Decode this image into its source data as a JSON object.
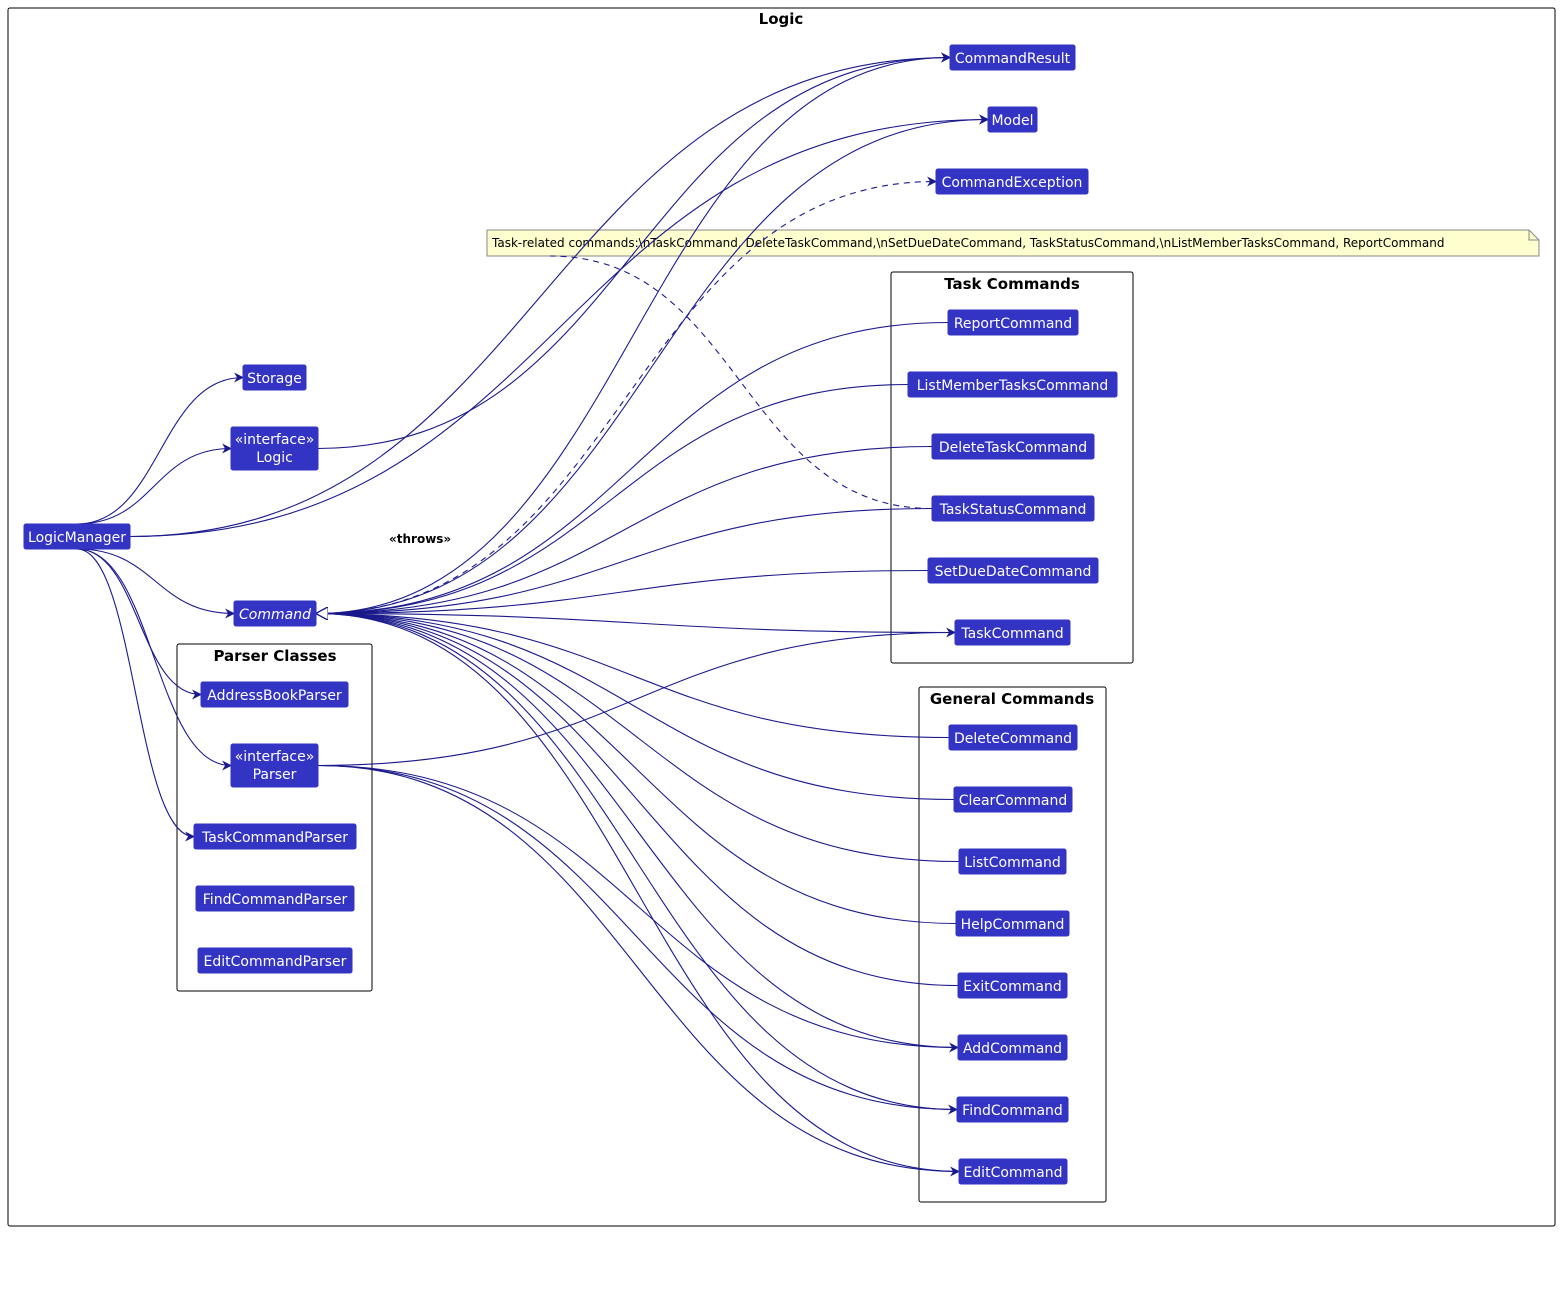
{
  "packages": {
    "logic": "Logic",
    "task_commands": "Task Commands",
    "general_commands": "General Commands",
    "parser_classes": "Parser Classes"
  },
  "colors": {
    "node_fill": "#3333c4",
    "edge": "#1a1a8c",
    "note_fill": "#fefece"
  },
  "nodes": {
    "CommandResult": {
      "label": "CommandResult"
    },
    "Model": {
      "label": "Model"
    },
    "CommandException": {
      "label": "CommandException"
    },
    "Storage": {
      "label": "Storage"
    },
    "Logic": {
      "stereotype": "«interface»",
      "label": "Logic"
    },
    "LogicManager": {
      "label": "LogicManager"
    },
    "Command": {
      "label": "Command"
    },
    "AddressBookParser": {
      "label": "AddressBookParser"
    },
    "Parser": {
      "stereotype": "«interface»",
      "label": "Parser"
    },
    "TaskCommandParser": {
      "label": "TaskCommandParser"
    },
    "FindCommandParser": {
      "label": "FindCommandParser"
    },
    "EditCommandParser": {
      "label": "EditCommandParser"
    },
    "ReportCommand": {
      "label": "ReportCommand"
    },
    "ListMemberTasksCommand": {
      "label": "ListMemberTasksCommand"
    },
    "DeleteTaskCommand": {
      "label": "DeleteTaskCommand"
    },
    "TaskStatusCommand": {
      "label": "TaskStatusCommand"
    },
    "SetDueDateCommand": {
      "label": "SetDueDateCommand"
    },
    "TaskCommand": {
      "label": "TaskCommand"
    },
    "DeleteCommand": {
      "label": "DeleteCommand"
    },
    "ClearCommand": {
      "label": "ClearCommand"
    },
    "ListCommand": {
      "label": "ListCommand"
    },
    "HelpCommand": {
      "label": "HelpCommand"
    },
    "ExitCommand": {
      "label": "ExitCommand"
    },
    "AddCommand": {
      "label": "AddCommand"
    },
    "FindCommand": {
      "label": "FindCommand"
    },
    "EditCommand": {
      "label": "EditCommand"
    }
  },
  "note": {
    "text": "Task-related commands:\\nTaskCommand, DeleteTaskCommand,\\nSetDueDateCommand, TaskStatusCommand,\\nListMemberTasksCommand, ReportCommand"
  },
  "throws_label": "«throws»",
  "edges": [
    {
      "from": "LogicManager",
      "to": "CommandResult",
      "type": "association"
    },
    {
      "from": "LogicManager",
      "to": "Storage",
      "type": "association"
    },
    {
      "from": "LogicManager",
      "to": "Logic",
      "type": "association"
    },
    {
      "from": "LogicManager",
      "to": "Model",
      "type": "association"
    },
    {
      "from": "LogicManager",
      "to": "Command",
      "type": "association"
    },
    {
      "from": "LogicManager",
      "to": "AddressBookParser",
      "type": "association"
    },
    {
      "from": "LogicManager",
      "to": "Parser",
      "type": "association"
    },
    {
      "from": "LogicManager",
      "to": "TaskCommandParser",
      "type": "association"
    },
    {
      "from": "Logic",
      "to": "CommandResult",
      "type": "association"
    },
    {
      "from": "Command",
      "to": "CommandResult",
      "type": "association"
    },
    {
      "from": "Command",
      "to": "Model",
      "type": "association"
    },
    {
      "from": "Command",
      "to": "CommandException",
      "type": "dependency"
    },
    {
      "from": "ReportCommand",
      "to": "Command",
      "type": "inheritance"
    },
    {
      "from": "ListMemberTasksCommand",
      "to": "Command",
      "type": "inheritance"
    },
    {
      "from": "DeleteTaskCommand",
      "to": "Command",
      "type": "inheritance"
    },
    {
      "from": "TaskStatusCommand",
      "to": "Command",
      "type": "inheritance"
    },
    {
      "from": "SetDueDateCommand",
      "to": "Command",
      "type": "inheritance"
    },
    {
      "from": "TaskCommand",
      "to": "Command",
      "type": "inheritance"
    },
    {
      "from": "DeleteCommand",
      "to": "Command",
      "type": "inheritance"
    },
    {
      "from": "ClearCommand",
      "to": "Command",
      "type": "inheritance"
    },
    {
      "from": "ListCommand",
      "to": "Command",
      "type": "inheritance"
    },
    {
      "from": "HelpCommand",
      "to": "Command",
      "type": "inheritance"
    },
    {
      "from": "ExitCommand",
      "to": "Command",
      "type": "inheritance"
    },
    {
      "from": "AddCommand",
      "to": "Command",
      "type": "inheritance"
    },
    {
      "from": "FindCommand",
      "to": "Command",
      "type": "inheritance"
    },
    {
      "from": "EditCommand",
      "to": "Command",
      "type": "inheritance"
    },
    {
      "from": "Parser",
      "to": "TaskCommand",
      "type": "association"
    },
    {
      "from": "Parser",
      "to": "AddCommand",
      "type": "association"
    },
    {
      "from": "Parser",
      "to": "FindCommand",
      "type": "association"
    },
    {
      "from": "Parser",
      "to": "EditCommand",
      "type": "association"
    },
    {
      "from": "TaskStatusCommand",
      "to": "note",
      "type": "note-link"
    }
  ]
}
